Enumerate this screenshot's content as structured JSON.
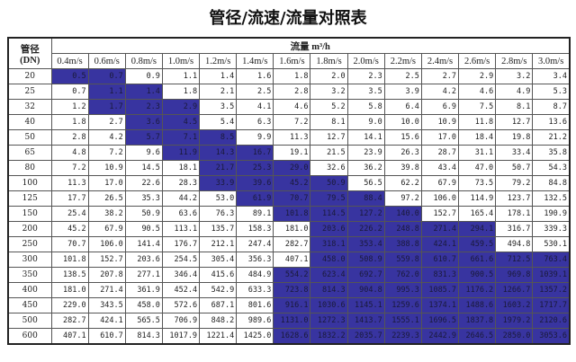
{
  "title": "管径/流速/流量对照表",
  "header": {
    "dn_label": "管径\n(DN)",
    "flow_label": "流量 m³/h",
    "velocities": [
      "0.4m/s",
      "0.6m/s",
      "0.8m/s",
      "1.0m/s",
      "1.2m/s",
      "1.4m/s",
      "1.6m/s",
      "1.8m/s",
      "2.0m/s",
      "2.2m/s",
      "2.4m/s",
      "2.6m/s",
      "2.8m/s",
      "3.0m/s"
    ]
  },
  "highlight_color": "#3834a0",
  "rows": [
    {
      "dn": "20",
      "values": [
        "0.5",
        "0.7",
        "0.9",
        "1.1",
        "1.4",
        "1.6",
        "1.8",
        "2.0",
        "2.3",
        "2.5",
        "2.7",
        "2.9",
        "3.2",
        "3.4"
      ],
      "highlighted": [
        0,
        1
      ]
    },
    {
      "dn": "25",
      "values": [
        "0.7",
        "1.1",
        "1.4",
        "1.8",
        "2.1",
        "2.5",
        "2.8",
        "3.2",
        "3.5",
        "3.9",
        "4.2",
        "4.6",
        "4.9",
        "5.3"
      ],
      "highlighted": [
        1,
        2
      ]
    },
    {
      "dn": "32",
      "values": [
        "1.2",
        "1.7",
        "2.3",
        "2.9",
        "3.5",
        "4.1",
        "4.6",
        "5.2",
        "5.8",
        "6.4",
        "6.9",
        "7.5",
        "8.1",
        "8.7"
      ],
      "highlighted": [
        1,
        2,
        3
      ]
    },
    {
      "dn": "40",
      "values": [
        "1.8",
        "2.7",
        "3.6",
        "4.5",
        "5.4",
        "6.3",
        "7.2",
        "8.1",
        "9.0",
        "10.0",
        "10.9",
        "11.8",
        "12.7",
        "13.6"
      ],
      "highlighted": [
        2,
        3
      ]
    },
    {
      "dn": "50",
      "values": [
        "2.8",
        "4.2",
        "5.7",
        "7.1",
        "8.5",
        "9.9",
        "11.3",
        "12.7",
        "14.1",
        "15.6",
        "17.0",
        "18.4",
        "19.8",
        "21.2"
      ],
      "highlighted": [
        2,
        3,
        4
      ]
    },
    {
      "dn": "65",
      "values": [
        "4.8",
        "7.2",
        "9.6",
        "11.9",
        "14.3",
        "16.7",
        "19.1",
        "21.5",
        "23.9",
        "26.3",
        "28.7",
        "31.1",
        "33.4",
        "35.8"
      ],
      "highlighted": [
        3,
        4,
        5
      ]
    },
    {
      "dn": "80",
      "values": [
        "7.2",
        "10.9",
        "14.5",
        "18.1",
        "21.7",
        "25.3",
        "29.0",
        "32.6",
        "36.2",
        "39.8",
        "43.4",
        "47.0",
        "50.7",
        "54.3"
      ],
      "highlighted": [
        4,
        5,
        6
      ]
    },
    {
      "dn": "100",
      "values": [
        "11.3",
        "17.0",
        "22.6",
        "28.3",
        "33.9",
        "39.6",
        "45.2",
        "50.9",
        "56.5",
        "62.2",
        "67.9",
        "73.5",
        "79.2",
        "84.8"
      ],
      "highlighted": [
        4,
        5,
        6,
        7
      ]
    },
    {
      "dn": "125",
      "values": [
        "17.7",
        "26.5",
        "35.3",
        "44.2",
        "53.0",
        "61.9",
        "70.7",
        "79.5",
        "88.4",
        "97.2",
        "106.0",
        "114.9",
        "123.7",
        "132.5"
      ],
      "highlighted": [
        5,
        6,
        7,
        8
      ]
    },
    {
      "dn": "150",
      "values": [
        "25.4",
        "38.2",
        "50.9",
        "63.6",
        "76.3",
        "89.1",
        "101.8",
        "114.5",
        "127.2",
        "140.0",
        "152.7",
        "165.4",
        "178.1",
        "190.9"
      ],
      "highlighted": [
        6,
        7,
        8,
        9
      ]
    },
    {
      "dn": "200",
      "values": [
        "45.2",
        "67.9",
        "90.5",
        "113.1",
        "135.7",
        "158.3",
        "181.0",
        "203.6",
        "226.2",
        "248.8",
        "271.4",
        "294.1",
        "316.7",
        "339.3"
      ],
      "highlighted": [
        7,
        8,
        9,
        10,
        11
      ]
    },
    {
      "dn": "250",
      "values": [
        "70.7",
        "106.0",
        "141.4",
        "176.7",
        "212.1",
        "247.4",
        "282.7",
        "318.1",
        "353.4",
        "388.8",
        "424.1",
        "459.5",
        "494.8",
        "530.1"
      ],
      "highlighted": [
        7,
        8,
        9,
        10,
        11
      ]
    },
    {
      "dn": "300",
      "values": [
        "101.8",
        "152.7",
        "203.6",
        "254.5",
        "305.4",
        "356.3",
        "407.1",
        "458.0",
        "508.9",
        "559.8",
        "610.7",
        "661.6",
        "712.5",
        "763.4"
      ],
      "highlighted": [
        7,
        8,
        9,
        10,
        11,
        12,
        13
      ]
    },
    {
      "dn": "350",
      "values": [
        "138.5",
        "207.8",
        "277.1",
        "346.4",
        "415.6",
        "484.9",
        "554.2",
        "623.4",
        "692.7",
        "762.0",
        "831.3",
        "900.5",
        "969.8",
        "1039.1"
      ],
      "highlighted": [
        6,
        7,
        8,
        9,
        10,
        11,
        12,
        13
      ]
    },
    {
      "dn": "400",
      "values": [
        "181.0",
        "271.4",
        "361.9",
        "452.4",
        "542.9",
        "633.3",
        "723.8",
        "814.3",
        "904.8",
        "995.3",
        "1085.7",
        "1176.2",
        "1266.7",
        "1357.2"
      ],
      "highlighted": [
        6,
        7,
        8,
        9,
        10,
        11,
        12,
        13
      ]
    },
    {
      "dn": "450",
      "values": [
        "229.0",
        "343.5",
        "458.0",
        "572.6",
        "687.1",
        "801.6",
        "916.1",
        "1030.6",
        "1145.1",
        "1259.6",
        "1374.1",
        "1488.6",
        "1603.2",
        "1717.7"
      ],
      "highlighted": [
        6,
        7,
        8,
        9,
        10,
        11,
        12,
        13
      ]
    },
    {
      "dn": "500",
      "values": [
        "282.7",
        "424.1",
        "565.5",
        "706.9",
        "848.2",
        "989.6",
        "1131.0",
        "1272.3",
        "1413.7",
        "1555.1",
        "1696.5",
        "1837.8",
        "1979.2",
        "2120.6"
      ],
      "highlighted": [
        6,
        7,
        8,
        9,
        10,
        11,
        12,
        13
      ]
    },
    {
      "dn": "600",
      "values": [
        "407.1",
        "610.7",
        "814.3",
        "1017.9",
        "1221.4",
        "1425.0",
        "1628.6",
        "1832.2",
        "2035.7",
        "2239.3",
        "2442.9",
        "2646.5",
        "2850.0",
        "3053.6"
      ],
      "highlighted": [
        6,
        7,
        8,
        9,
        10,
        11,
        12,
        13
      ]
    }
  ]
}
